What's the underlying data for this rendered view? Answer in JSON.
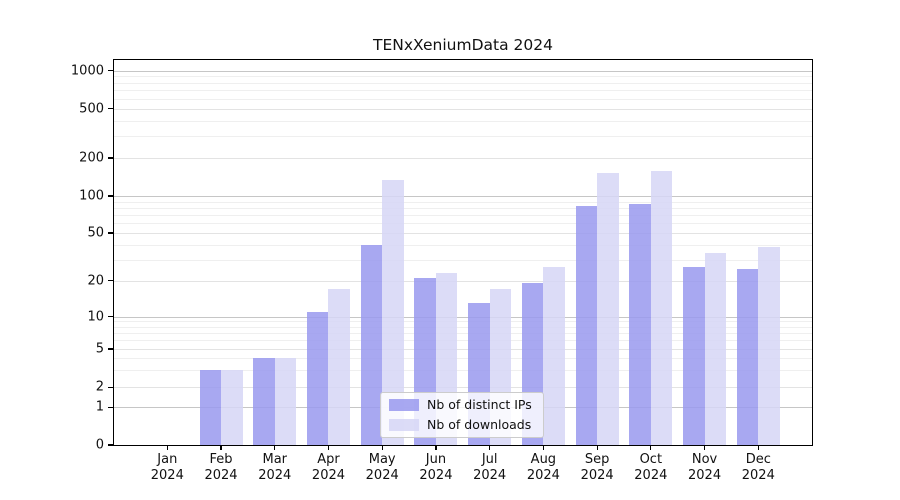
{
  "title": "TENxXeniumData 2024",
  "chart_data": {
    "type": "bar",
    "title": "TENxXeniumData 2024",
    "categories": [
      "Jan 2024",
      "Feb 2024",
      "Mar 2024",
      "Apr 2024",
      "May 2024",
      "Jun 2024",
      "Jul 2024",
      "Aug 2024",
      "Sep 2024",
      "Oct 2024",
      "Nov 2024",
      "Dec 2024"
    ],
    "series": [
      {
        "name": "Nb of distinct IPs",
        "color": "#9999ee",
        "values": [
          0,
          3,
          4,
          11,
          40,
          21,
          13,
          19,
          83,
          86,
          26,
          25
        ]
      },
      {
        "name": "Nb of downloads",
        "color": "#d6d6f6",
        "values": [
          0,
          3,
          4,
          17,
          133,
          23,
          17,
          26,
          151,
          157,
          34,
          38
        ]
      }
    ],
    "yscale": "symlog",
    "ylim": [
      0,
      1300
    ],
    "yticks": [
      0,
      1,
      2,
      5,
      10,
      20,
      50,
      100,
      200,
      500,
      1000
    ],
    "grid": "on",
    "legend_position": "lower center"
  },
  "legend": {
    "items": [
      {
        "label": "Nb of distinct IPs",
        "color": "#9999ee"
      },
      {
        "label": "Nb of downloads",
        "color": "#d6d6f6"
      }
    ]
  },
  "colors": {
    "grid_major": "#c6c6c6",
    "grid_mid": "#e3e3e3",
    "grid_minor": "#efefef",
    "spine": "#000000",
    "text": "#111111"
  }
}
